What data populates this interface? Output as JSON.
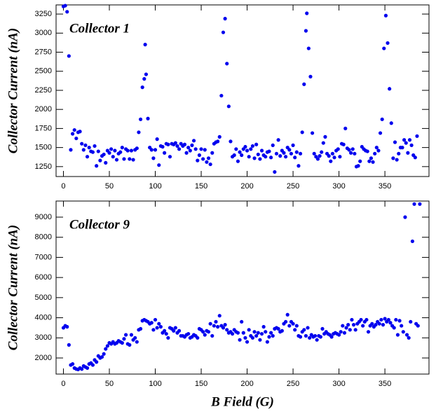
{
  "chart_data": [
    {
      "type": "scatter",
      "annotation": "Collector 1",
      "ylabel": "Collector Current (nA)",
      "color": "#0000ee",
      "xlim": [
        -8,
        398
      ],
      "ylim": [
        1120,
        3370
      ],
      "xticks": [
        0,
        50,
        100,
        150,
        200,
        250,
        300,
        350
      ],
      "yticks": [
        1250,
        1500,
        1750,
        2000,
        2250,
        2500,
        2750,
        3000,
        3250
      ],
      "x": [
        0,
        2,
        4,
        6,
        8,
        10,
        12,
        14,
        16,
        18,
        20,
        22,
        24,
        26,
        28,
        30,
        32,
        34,
        36,
        38,
        40,
        42,
        44,
        46,
        48,
        50,
        52,
        54,
        56,
        58,
        60,
        62,
        64,
        66,
        68,
        70,
        72,
        74,
        76,
        78,
        80,
        82,
        84,
        86,
        88,
        89,
        90,
        92,
        94,
        96,
        98,
        100,
        102,
        104,
        106,
        108,
        110,
        112,
        114,
        116,
        118,
        120,
        122,
        124,
        126,
        128,
        130,
        132,
        134,
        136,
        138,
        140,
        142,
        144,
        146,
        148,
        150,
        152,
        154,
        156,
        158,
        160,
        162,
        164,
        166,
        168,
        170,
        172,
        174,
        176,
        178,
        180,
        182,
        184,
        186,
        188,
        190,
        192,
        194,
        196,
        198,
        200,
        202,
        204,
        206,
        208,
        210,
        212,
        214,
        216,
        218,
        220,
        222,
        224,
        226,
        228,
        230,
        232,
        234,
        236,
        238,
        240,
        242,
        244,
        246,
        248,
        250,
        252,
        254,
        256,
        258,
        260,
        262,
        264,
        265,
        267,
        269,
        271,
        273,
        275,
        277,
        279,
        281,
        283,
        285,
        287,
        289,
        291,
        293,
        295,
        297,
        299,
        301,
        303,
        305,
        307,
        309,
        311,
        313,
        315,
        317,
        319,
        321,
        323,
        325,
        327,
        329,
        331,
        333,
        335,
        337,
        339,
        341,
        343,
        345,
        347,
        349,
        351,
        353,
        355,
        357,
        359,
        361,
        363,
        365,
        367,
        369,
        371,
        373,
        375,
        377,
        379,
        381,
        383,
        385
      ],
      "values": [
        3350,
        3360,
        3280,
        2700,
        1470,
        1680,
        1730,
        1620,
        1700,
        1710,
        1550,
        1470,
        1530,
        1380,
        1500,
        1450,
        1440,
        1520,
        1260,
        1450,
        1330,
        1390,
        1410,
        1300,
        1460,
        1430,
        1480,
        1380,
        1460,
        1340,
        1420,
        1440,
        1500,
        1350,
        1480,
        1460,
        1350,
        1460,
        1340,
        1470,
        1490,
        1700,
        1870,
        2290,
        2400,
        2850,
        2460,
        1880,
        1500,
        1470,
        1360,
        1470,
        1610,
        1270,
        1520,
        1510,
        1430,
        1550,
        1540,
        1380,
        1550,
        1540,
        1560,
        1520,
        1480,
        1550,
        1520,
        1540,
        1430,
        1500,
        1460,
        1530,
        1590,
        1480,
        1330,
        1400,
        1480,
        1350,
        1470,
        1310,
        1360,
        1280,
        1430,
        1550,
        1570,
        1580,
        1640,
        2180,
        3010,
        3190,
        2600,
        2040,
        1580,
        1380,
        1400,
        1480,
        1320,
        1440,
        1400,
        1480,
        1510,
        1460,
        1380,
        1480,
        1520,
        1360,
        1540,
        1410,
        1350,
        1460,
        1400,
        1380,
        1440,
        1450,
        1370,
        1530,
        1180,
        1420,
        1600,
        1390,
        1460,
        1430,
        1380,
        1500,
        1470,
        1420,
        1530,
        1370,
        1440,
        1260,
        1420,
        1700,
        2330,
        3030,
        3260,
        2800,
        2430,
        1690,
        1420,
        1380,
        1350,
        1390,
        1440,
        1560,
        1640,
        1420,
        1390,
        1320,
        1420,
        1370,
        1460,
        1480,
        1380,
        1550,
        1540,
        1750,
        1490,
        1470,
        1430,
        1480,
        1420,
        1250,
        1260,
        1320,
        1510,
        1480,
        1460,
        1450,
        1320,
        1360,
        1310,
        1420,
        1500,
        1460,
        1690,
        1870,
        2800,
        3230,
        2870,
        2270,
        1820,
        1360,
        1570,
        1340,
        1420,
        1500,
        1500,
        1600,
        1560,
        1430,
        1600,
        1530,
        1400,
        1370,
        1650
      ]
    },
    {
      "type": "scatter",
      "annotation": "Collector 9",
      "ylabel": "Collector Current (nA)",
      "xlabel": "B Field (G)",
      "color": "#0000ee",
      "xlim": [
        -8,
        398
      ],
      "ylim": [
        1200,
        9800
      ],
      "xticks": [
        0,
        50,
        100,
        150,
        200,
        250,
        300,
        350
      ],
      "yticks": [
        2000,
        3000,
        4000,
        5000,
        6000,
        7000,
        8000,
        9000
      ],
      "x": [
        0,
        2,
        4,
        6,
        8,
        10,
        12,
        14,
        16,
        18,
        20,
        22,
        24,
        26,
        28,
        30,
        32,
        34,
        36,
        38,
        40,
        42,
        44,
        46,
        48,
        50,
        52,
        54,
        56,
        58,
        60,
        62,
        64,
        66,
        68,
        70,
        72,
        74,
        76,
        78,
        80,
        82,
        84,
        86,
        88,
        90,
        92,
        94,
        96,
        98,
        100,
        102,
        104,
        106,
        108,
        110,
        112,
        114,
        116,
        118,
        120,
        122,
        124,
        126,
        128,
        130,
        132,
        134,
        136,
        138,
        140,
        142,
        144,
        146,
        148,
        150,
        152,
        154,
        156,
        158,
        160,
        162,
        164,
        166,
        168,
        170,
        172,
        174,
        176,
        178,
        180,
        182,
        184,
        186,
        188,
        190,
        192,
        194,
        196,
        198,
        200,
        202,
        204,
        206,
        208,
        210,
        212,
        214,
        216,
        218,
        220,
        222,
        224,
        226,
        228,
        230,
        232,
        234,
        236,
        238,
        240,
        242,
        244,
        246,
        248,
        250,
        252,
        254,
        256,
        258,
        260,
        262,
        264,
        266,
        268,
        270,
        272,
        274,
        276,
        278,
        280,
        282,
        284,
        286,
        288,
        290,
        292,
        294,
        296,
        298,
        300,
        302,
        304,
        306,
        308,
        310,
        312,
        314,
        316,
        318,
        320,
        322,
        324,
        326,
        328,
        330,
        332,
        334,
        336,
        338,
        340,
        342,
        344,
        346,
        348,
        350,
        352,
        354,
        356,
        358,
        360,
        362,
        364,
        366,
        368,
        370,
        372,
        374,
        376,
        378,
        380,
        382,
        384,
        386,
        388
      ],
      "values": [
        3500,
        3600,
        3550,
        2650,
        1650,
        1700,
        1500,
        1450,
        1430,
        1500,
        1450,
        1600,
        1550,
        1500,
        1700,
        1750,
        1650,
        1900,
        1800,
        2100,
        2000,
        2050,
        2200,
        2450,
        2600,
        2750,
        2700,
        2800,
        2700,
        2750,
        2850,
        2800,
        2750,
        2950,
        3150,
        2700,
        2650,
        3150,
        2900,
        3000,
        2800,
        3400,
        3450,
        3850,
        3900,
        3850,
        3800,
        3700,
        3750,
        3400,
        3900,
        3500,
        3700,
        3550,
        3250,
        3350,
        3200,
        3000,
        3500,
        3450,
        3350,
        3500,
        3250,
        3350,
        3100,
        3100,
        3050,
        3150,
        3200,
        3000,
        3050,
        3150,
        3100,
        3000,
        3450,
        3400,
        3300,
        3150,
        3350,
        3300,
        3700,
        3100,
        3600,
        3800,
        3550,
        4100,
        3600,
        3500,
        3650,
        3400,
        3250,
        3300,
        3200,
        3400,
        3300,
        3250,
        2900,
        3800,
        3250,
        3000,
        2800,
        3400,
        3100,
        3000,
        3300,
        3100,
        3250,
        2900,
        3200,
        3550,
        3300,
        2800,
        3050,
        3250,
        3100,
        3450,
        3500,
        3450,
        3300,
        3350,
        3700,
        3800,
        4150,
        3600,
        3800,
        3700,
        3400,
        3600,
        3100,
        3050,
        3300,
        3400,
        3100,
        3500,
        3000,
        3150,
        3050,
        3100,
        2900,
        3100,
        3050,
        3450,
        3200,
        3300,
        3200,
        3150,
        3050,
        3200,
        3250,
        3200,
        3150,
        3300,
        3600,
        3250,
        3500,
        3650,
        3400,
        3900,
        3650,
        3400,
        3700,
        3800,
        3900,
        3600,
        3800,
        3900,
        3300,
        3600,
        3700,
        3550,
        3650,
        3800,
        3700,
        3900,
        3650,
        3950,
        3800,
        3900,
        3750,
        3600,
        3500,
        3900,
        3150,
        3850,
        3600,
        3300,
        9000,
        3150,
        3000,
        3800,
        7800,
        9650,
        3700,
        3600,
        9650
      ]
    }
  ]
}
